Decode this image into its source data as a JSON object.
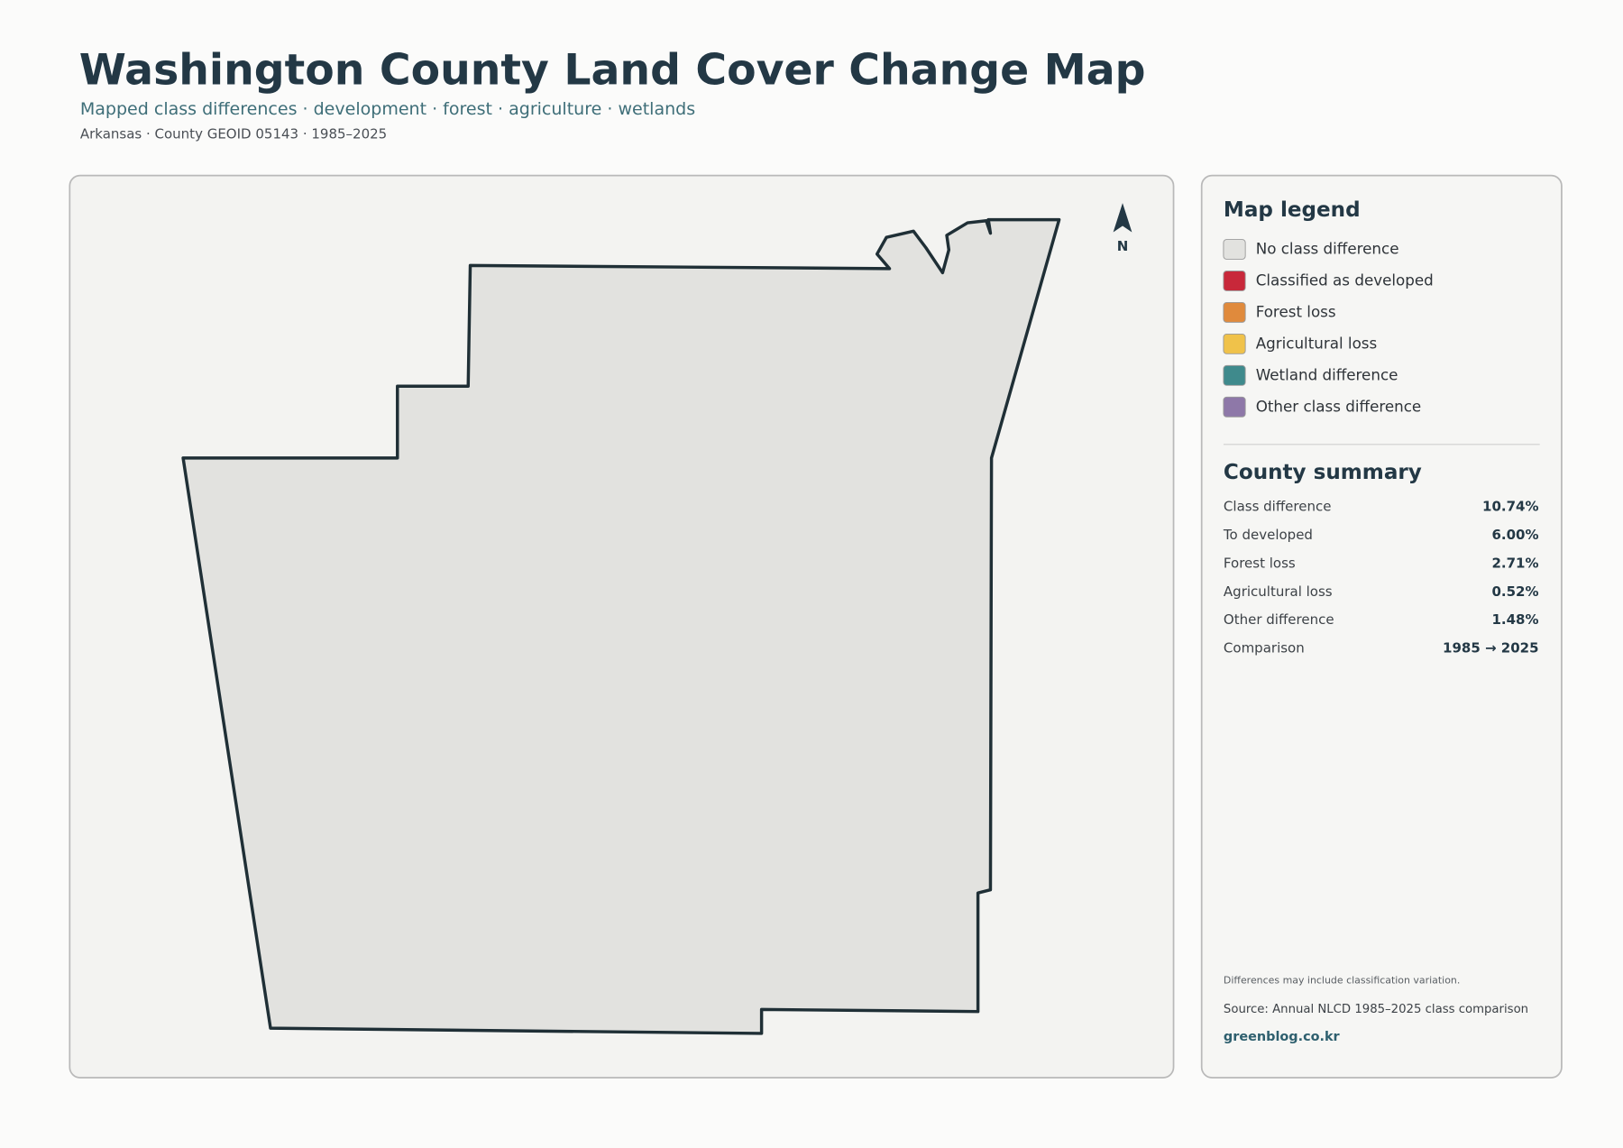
{
  "header": {
    "title": "Washington County Land Cover Change Map",
    "subtitle": "Mapped class differences · development · forest · agriculture · wetlands",
    "meta": "Arkansas · County GEOID 05143 · 1985–2025"
  },
  "map": {
    "north_label": "N"
  },
  "legend": {
    "title": "Map legend",
    "items": [
      {
        "label": "No class difference",
        "color": "#e2e2df"
      },
      {
        "label": "Classified as developed",
        "color": "#c8283a"
      },
      {
        "label": "Forest loss",
        "color": "#e08a3c"
      },
      {
        "label": "Agricultural loss",
        "color": "#f0c24a"
      },
      {
        "label": "Wetland difference",
        "color": "#3f8a8c"
      },
      {
        "label": "Other class difference",
        "color": "#8e78a8"
      }
    ]
  },
  "summary": {
    "title": "County summary",
    "rows": [
      [
        "Class difference",
        "10.74%"
      ],
      [
        "To developed",
        "6.00%"
      ],
      [
        "Forest loss",
        "2.71%"
      ],
      [
        "Agricultural loss",
        "0.52%"
      ],
      [
        "Other difference",
        "1.48%"
      ],
      [
        "Comparison",
        "1985 → 2025"
      ]
    ]
  },
  "footer": {
    "note": "Differences may include classification variation.",
    "source": "Source: Annual NLCD 1985–2025 class comparison",
    "brand": "greenblog.co.kr"
  }
}
